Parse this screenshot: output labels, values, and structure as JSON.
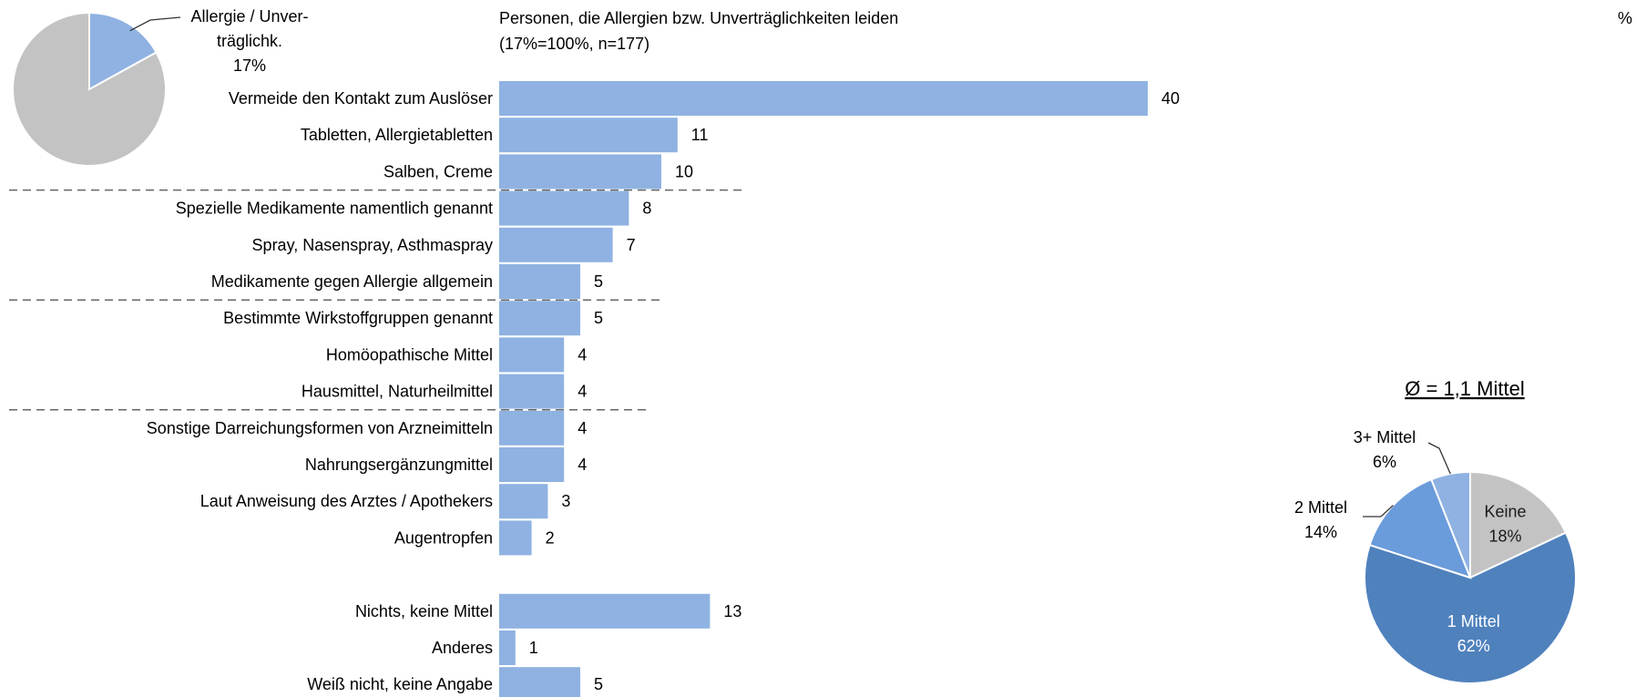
{
  "chart_data": [
    {
      "type": "pie",
      "slices": [
        {
          "label": "Allergie / Unver-|träglichk.|17%",
          "value": 17,
          "color": "#8FB2E2"
        },
        {
          "label": "",
          "value": 83,
          "color": "#C3C3C3"
        }
      ]
    },
    {
      "type": "bar",
      "orientation": "horizontal",
      "title": "Personen, die Allergien bzw. Unverträglichkeiten leiden",
      "subtitle": "(17%=100%, n=177)",
      "unit": "%",
      "color": "#8FB2E2",
      "xlim": [
        0,
        40
      ],
      "categories": [
        "Vermeide den Kontakt zum Auslöser",
        "Tabletten, Allergietabletten",
        "Salben, Creme",
        "Spezielle Medikamente namentlich genannt",
        "Spray, Nasenspray, Asthmaspray",
        "Medikamente gegen Allergie allgemein",
        "Bestimmte Wirkstoffgruppen genannt",
        "Homöopathische Mittel",
        "Hausmittel, Naturheilmittel",
        "Sonstige Darreichungsformen von Arzneimitteln",
        "Nahrungsergänzungmittel",
        "Laut Anweisung des Arztes / Apothekers",
        "Augentropfen",
        "",
        "Nichts, keine Mittel",
        "Anderes",
        "Weiß nicht, keine Angabe"
      ],
      "values": [
        40,
        11,
        10,
        8,
        7,
        5,
        5,
        4,
        4,
        4,
        4,
        3,
        2,
        null,
        13,
        1,
        5
      ],
      "data_labels": [
        "40",
        "11",
        "10",
        "8",
        "7",
        "5",
        "5",
        "4",
        "4",
        "4",
        "4",
        "3",
        "2",
        "",
        "13",
        "1",
        "5"
      ],
      "group_separators_after": [
        2,
        5,
        8
      ]
    },
    {
      "type": "pie",
      "title": "Ø = 1,1 Mittel",
      "slices": [
        {
          "label": "Keine|18%",
          "value": 18,
          "color": "#C3C3C3"
        },
        {
          "label": "1 Mittel|62%",
          "value": 62,
          "color": "#4F81BD"
        },
        {
          "label": "2 Mittel|14%",
          "value": 14,
          "color": "#6A9BDB"
        },
        {
          "label": "3+ Mittel|6%",
          "value": 6,
          "color": "#8FB2E2"
        }
      ]
    }
  ]
}
